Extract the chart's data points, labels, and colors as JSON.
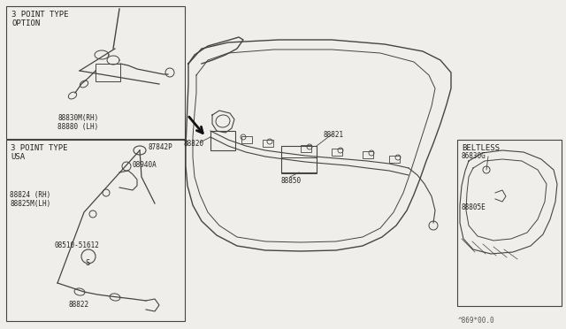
{
  "bg_color": "#f0eeea",
  "line_color": "#444444",
  "watermark": "^869*00.0",
  "box1_label": "3 POINT TYPE\nOPTION",
  "box1_parts": [
    "88830M(RH)",
    "88880 (LH)"
  ],
  "box2_label": "3 POINT TYPE\nUSA",
  "box2_parts": [
    "87842P",
    "08940A",
    "88824 (RH)",
    "88825M(LH)",
    "08510-51612",
    "88822"
  ],
  "box3_label": "BELTLESS",
  "box3_parts": [
    "86830G",
    "88805E"
  ],
  "center_parts": [
    "88820",
    "88821",
    "88850"
  ],
  "font_color": "#222222"
}
